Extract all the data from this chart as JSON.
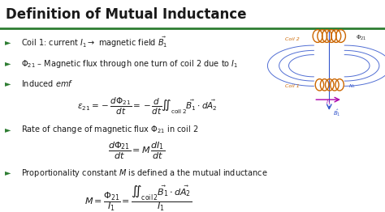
{
  "title": "Definition of Mutual Inductance",
  "bg_color": "#ffffff",
  "title_color": "#1a1a1a",
  "bullet_color": "#2e7d32",
  "text_color": "#1a1a1a",
  "green_line_color": "#2e7d32",
  "line1": "Coil 1: current $I_1 \\rightarrow$ magnetic field $\\vec{B_1}$",
  "line2": "$\\Phi_{21}$ – Magnetic flux through one turn of coil 2 due to $I_1$",
  "line3": "Induced $\\mathit{emf}$",
  "eq1": "$\\varepsilon_{21} = -\\dfrac{d\\Phi_{21}}{dt} = -\\dfrac{d}{dt}\\iint_{\\mathrm{coil\\,2}} \\vec{B_1}\\cdot d\\vec{A_2}$",
  "line4": "Rate of change of magnetic flux $\\Phi_{21}$ in coil 2",
  "eq2": "$\\dfrac{d\\Phi_{21}}{dt} = M\\,\\dfrac{dI_1}{dt}$",
  "line5": "Proportionality constant $M$ is defined a the mutual inductance",
  "eq3": "$M = \\dfrac{\\Phi_{21}}{I_1} = \\dfrac{\\iint_{\\mathrm{coil\\,2}} \\vec{B_1}\\cdot d\\vec{A_2}}{I_1}$",
  "figsize": [
    4.74,
    2.62
  ],
  "dpi": 100,
  "title_fontsize": 12,
  "body_fontsize": 7.0,
  "eq_fontsize": 7.5,
  "bullet_symbol": "►"
}
